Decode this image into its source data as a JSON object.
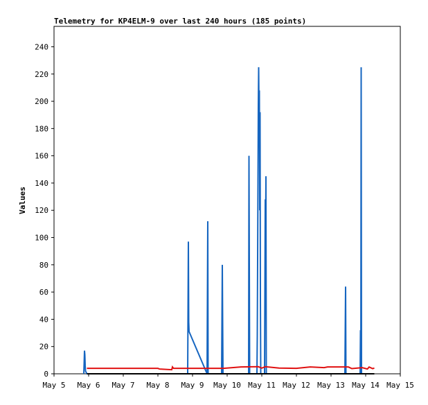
{
  "chart_data": {
    "type": "line",
    "title": "Telemetry for KP4ELM-9 over last 240 hours (185 points)",
    "xlabel": "",
    "ylabel": "Values",
    "x_ticks": [
      "May 5",
      "May 6",
      "May 7",
      "May 8",
      "May 9",
      "May 10",
      "May 11",
      "May 12",
      "May 13",
      "May 14",
      "May 15"
    ],
    "xlim": [
      "May 5",
      "May 15"
    ],
    "ylim": [
      0,
      255
    ],
    "y_ticks": [
      0,
      20,
      40,
      60,
      80,
      100,
      120,
      140,
      160,
      180,
      200,
      220,
      240
    ],
    "grid": false,
    "legend": "none",
    "series": [
      {
        "color": "#1565c0",
        "points": [
          [
            0.86,
            0
          ],
          [
            0.87,
            8
          ],
          [
            0.88,
            17
          ],
          [
            0.89,
            14
          ],
          [
            0.9,
            6
          ],
          [
            0.91,
            2
          ],
          [
            0.95,
            0
          ],
          [
            3.2,
            0
          ],
          [
            3.8,
            0
          ],
          [
            3.86,
            0
          ],
          [
            3.87,
            48
          ],
          [
            3.88,
            97
          ],
          [
            3.89,
            38
          ],
          [
            3.9,
            31
          ],
          [
            4.42,
            0
          ],
          [
            4.44,
            112
          ],
          [
            4.45,
            0
          ],
          [
            4.84,
            0
          ],
          [
            4.85,
            40
          ],
          [
            4.86,
            80
          ],
          [
            4.87,
            38
          ],
          [
            4.88,
            0
          ],
          [
            5.62,
            0
          ],
          [
            5.63,
            160
          ],
          [
            5.64,
            80
          ],
          [
            5.65,
            0
          ],
          [
            5.86,
            0
          ],
          [
            5.87,
            28
          ],
          [
            5.88,
            84
          ],
          [
            5.89,
            141
          ],
          [
            5.9,
            197
          ],
          [
            5.91,
            225
          ],
          [
            5.92,
            192
          ],
          [
            5.93,
            208
          ],
          [
            5.94,
            120
          ],
          [
            5.95,
            192
          ],
          [
            5.96,
            56
          ],
          [
            5.97,
            0
          ],
          [
            6.08,
            0
          ],
          [
            6.09,
            64
          ],
          [
            6.1,
            128
          ],
          [
            6.11,
            100
          ],
          [
            6.12,
            145
          ],
          [
            6.13,
            0
          ],
          [
            8.4,
            0
          ],
          [
            8.42,
            64
          ],
          [
            8.43,
            0
          ],
          [
            8.84,
            0
          ],
          [
            8.85,
            32
          ],
          [
            8.86,
            0
          ],
          [
            8.87,
            225
          ],
          [
            8.88,
            0
          ]
        ]
      },
      {
        "color": "#e01010",
        "points": [
          [
            0.95,
            4
          ],
          [
            3.0,
            4
          ],
          [
            3.05,
            3.5
          ],
          [
            3.4,
            3
          ],
          [
            3.42,
            5
          ],
          [
            3.45,
            4
          ],
          [
            4.9,
            4
          ],
          [
            5.4,
            5
          ],
          [
            5.9,
            5.2
          ],
          [
            6.0,
            4.2
          ],
          [
            6.1,
            5.2
          ],
          [
            6.5,
            4.2
          ],
          [
            7.0,
            4.0
          ],
          [
            7.4,
            5.0
          ],
          [
            7.8,
            4.5
          ],
          [
            7.9,
            5
          ],
          [
            8.5,
            5
          ],
          [
            8.6,
            3.8
          ],
          [
            8.9,
            4.5
          ],
          [
            9.05,
            3.5
          ],
          [
            9.1,
            5
          ],
          [
            9.2,
            3.8
          ],
          [
            9.25,
            4.2
          ]
        ]
      },
      {
        "color": "#000000",
        "points": [
          [
            0.95,
            0
          ],
          [
            9.25,
            0
          ]
        ]
      }
    ]
  }
}
